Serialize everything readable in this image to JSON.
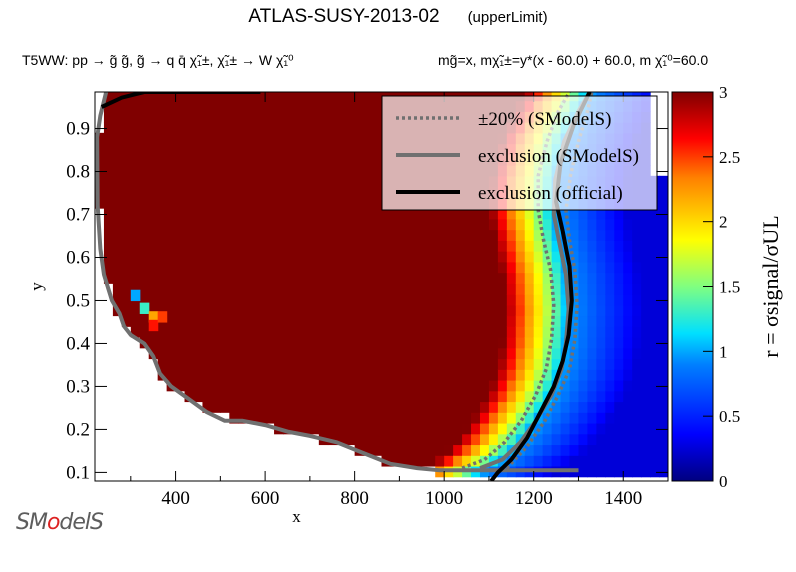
{
  "header": {
    "title": "ATLAS-SUSY-2013-02",
    "subtitle": "(upperLimit)",
    "process": "T5WW: pp → g̃ g̃, g̃ → q q̄ χ̃₁±, χ̃₁± → W χ̃₁⁰",
    "masses": "mg̃=x, mχ̃₁±=y*(x - 60.0) + 60.0, m χ̃₁⁰=60.0"
  },
  "logo": {
    "text_a": "SM",
    "text_o": "o",
    "text_b": "delS"
  },
  "colors": {
    "frame": "#000000",
    "sms_line": "#707070",
    "official_line": "#000000"
  },
  "chart_data": {
    "type": "heatmap",
    "xlabel": "x",
    "ylabel": "y",
    "xlim": [
      220,
      1500
    ],
    "ylim": [
      0.08,
      0.985
    ],
    "xticks": [
      400,
      600,
      800,
      1000,
      1200,
      1400
    ],
    "yticks": [
      0.1,
      0.2,
      0.3,
      0.4,
      0.5,
      0.6,
      0.7,
      0.8,
      0.9
    ],
    "colorbar": {
      "label": "r = σsignal/σUL",
      "range": [
        0,
        3
      ],
      "ticks": [
        0,
        0.5,
        1,
        1.5,
        2,
        2.5,
        3
      ]
    },
    "legend": {
      "placement": "top-right",
      "entries": [
        "±20% (SModelS)",
        "exclusion (SModelS)",
        "exclusion (official)"
      ]
    },
    "grid": false,
    "heatmap_regions": {
      "saturated": "r ≥ 3 throughout the low-x region left of the exclusion contour",
      "transition": "r falls from 3 to ~1 over x ≈ 1080–1260",
      "high_x": "r ≈ 0.3–0.8 for x ≥ 1300"
    },
    "left_boundary": [
      [
        245,
        0.985
      ],
      [
        232,
        0.93
      ],
      [
        225,
        0.88
      ],
      [
        226,
        0.72
      ],
      [
        232,
        0.62
      ],
      [
        240,
        0.56
      ],
      [
        258,
        0.5
      ],
      [
        275,
        0.47
      ],
      [
        285,
        0.44
      ],
      [
        300,
        0.42
      ],
      [
        330,
        0.4
      ],
      [
        350,
        0.37
      ],
      [
        365,
        0.33
      ],
      [
        390,
        0.3
      ],
      [
        430,
        0.27
      ],
      [
        470,
        0.24
      ],
      [
        510,
        0.22
      ],
      [
        550,
        0.22
      ],
      [
        600,
        0.21
      ],
      [
        650,
        0.195
      ],
      [
        700,
        0.185
      ],
      [
        760,
        0.17
      ],
      [
        820,
        0.145
      ],
      [
        880,
        0.12
      ],
      [
        940,
        0.11
      ],
      [
        990,
        0.105
      ],
      [
        1040,
        0.105
      ],
      [
        1100,
        0.105
      ],
      [
        1200,
        0.105
      ],
      [
        1300,
        0.105
      ]
    ],
    "series": [
      {
        "name": "exclusion (official)",
        "points": [
          [
            1105,
            0.08
          ],
          [
            1120,
            0.1
          ],
          [
            1150,
            0.13
          ],
          [
            1185,
            0.18
          ],
          [
            1215,
            0.24
          ],
          [
            1245,
            0.3
          ],
          [
            1265,
            0.36
          ],
          [
            1278,
            0.42
          ],
          [
            1285,
            0.5
          ],
          [
            1280,
            0.58
          ],
          [
            1265,
            0.66
          ],
          [
            1250,
            0.73
          ],
          [
            1260,
            0.82
          ],
          [
            1290,
            0.91
          ],
          [
            1325,
            0.985
          ]
        ],
        "top_edge": [
          [
            235,
            0.95
          ],
          [
            280,
            0.972
          ],
          [
            330,
            0.985
          ],
          [
            585,
            0.985
          ],
          [
            585,
            0.995
          ]
        ]
      },
      {
        "name": "exclusion (SModelS)",
        "points": [
          [
            1080,
            0.11
          ],
          [
            1130,
            0.13
          ],
          [
            1170,
            0.17
          ],
          [
            1205,
            0.22
          ],
          [
            1240,
            0.28
          ],
          [
            1262,
            0.34
          ],
          [
            1272,
            0.4
          ],
          [
            1278,
            0.48
          ],
          [
            1272,
            0.56
          ],
          [
            1258,
            0.63
          ],
          [
            1245,
            0.7
          ],
          [
            1248,
            0.78
          ],
          [
            1268,
            0.87
          ],
          [
            1300,
            0.94
          ],
          [
            1325,
            0.985
          ]
        ]
      },
      {
        "name": "±20% (SModelS)",
        "upper": [
          [
            1140,
            0.11
          ],
          [
            1185,
            0.16
          ],
          [
            1225,
            0.22
          ],
          [
            1255,
            0.28
          ],
          [
            1280,
            0.34
          ],
          [
            1292,
            0.41
          ],
          [
            1297,
            0.49
          ],
          [
            1292,
            0.57
          ],
          [
            1280,
            0.64
          ],
          [
            1272,
            0.71
          ],
          [
            1282,
            0.79
          ],
          [
            1300,
            0.87
          ],
          [
            1320,
            0.94
          ],
          [
            1330,
            0.985
          ]
        ],
        "lower": [
          [
            1040,
            0.11
          ],
          [
            1090,
            0.13
          ],
          [
            1135,
            0.17
          ],
          [
            1172,
            0.22
          ],
          [
            1205,
            0.28
          ],
          [
            1228,
            0.34
          ],
          [
            1240,
            0.41
          ],
          [
            1245,
            0.49
          ],
          [
            1238,
            0.57
          ],
          [
            1222,
            0.64
          ],
          [
            1210,
            0.71
          ],
          [
            1210,
            0.79
          ],
          [
            1230,
            0.87
          ],
          [
            1255,
            0.94
          ],
          [
            1280,
            0.985
          ]
        ]
      }
    ]
  }
}
